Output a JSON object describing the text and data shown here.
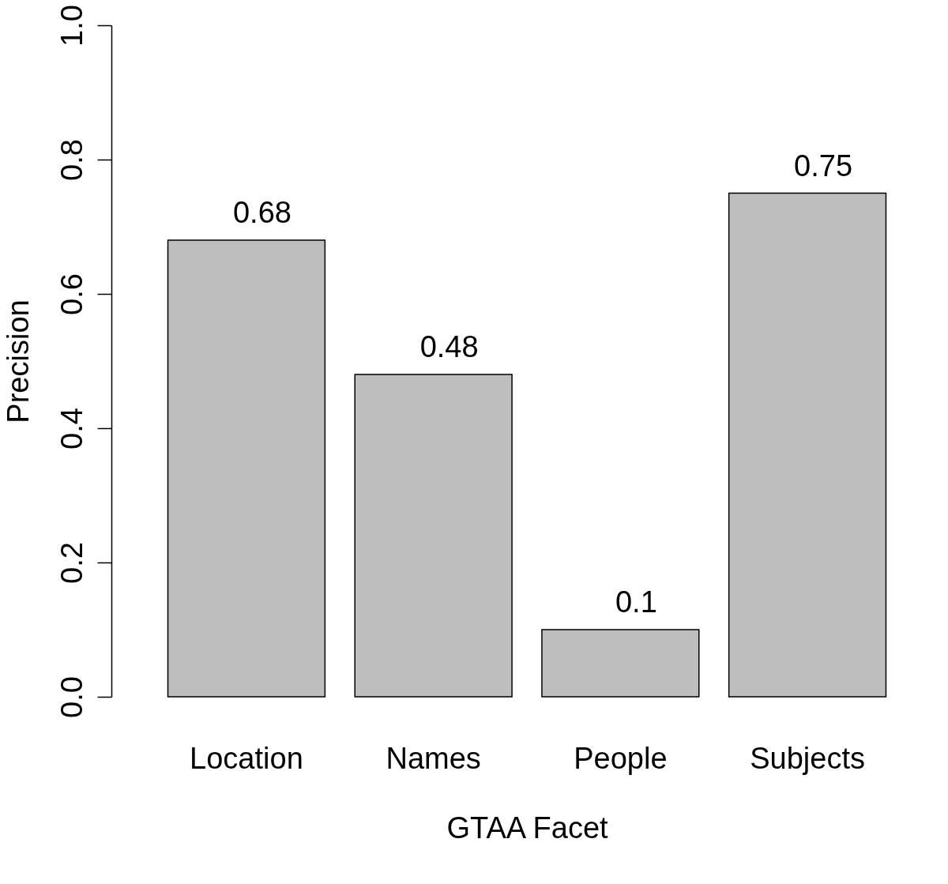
{
  "chart_data": {
    "type": "bar",
    "xlabel": "GTAA Facet",
    "ylabel": "Precision",
    "categories": [
      "Location",
      "Names",
      "People",
      "Subjects"
    ],
    "values": [
      0.68,
      0.48,
      0.1,
      0.75
    ],
    "color": "#bebebe",
    "ylim": [
      0,
      1
    ],
    "yticks": [
      {
        "value": 0,
        "label": "0.0"
      },
      0.2,
      0.4,
      0.6,
      0.8,
      {
        "value": 1,
        "label": "1.0"
      }
    ],
    "grid": false,
    "data_labels": true
  }
}
